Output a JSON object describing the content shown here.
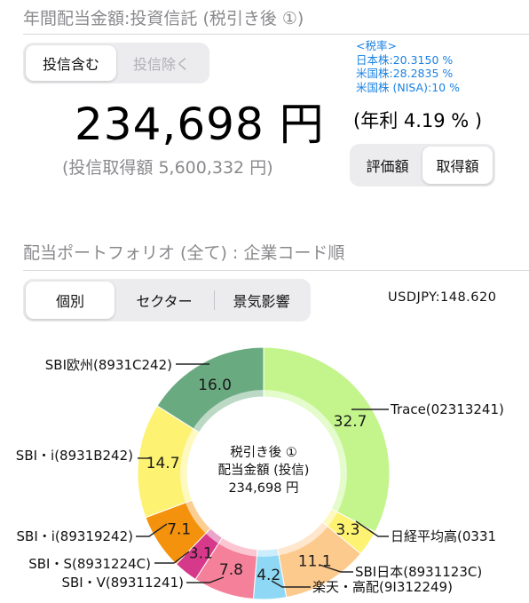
{
  "header": {
    "title": "年間配当金額:投資信託 (税引き後 ①)",
    "toggle": {
      "include_label": "投信含む",
      "exclude_label": "投信除く"
    },
    "tax_rates": {
      "heading": "<税率>",
      "jp": "日本株:20.3150 %",
      "us": "米国株:28.2835 %",
      "us_nisa": "米国株 (NISA):10 %"
    },
    "amount": "234,698 円",
    "yield": "(年利 4.19 % )",
    "acquisition": "(投信取得額 5,600,332 円)",
    "basis_toggle": {
      "market_label": "評価額",
      "cost_label": "取得額"
    }
  },
  "portfolio": {
    "title": "配当ポートフォリオ (全て) : 企業コード順",
    "tabs": [
      "個別",
      "セクター",
      "景気影響"
    ],
    "usdjpy": "USDJPY:148.620",
    "center": {
      "line1": "税引き後 ①",
      "line2": "配当金額 (投信)",
      "line3": "234,698 円"
    }
  },
  "chart_data": {
    "type": "pie",
    "unit": "%",
    "segments": [
      {
        "name": "Trace(02313241)",
        "value": 32.7,
        "color": "#c4f58c"
      },
      {
        "name": "日経平均高(0331",
        "value": 3.3,
        "color": "#fdf272"
      },
      {
        "name": "SBI日本(8931123C)",
        "value": 11.1,
        "color": "#fdca8e"
      },
      {
        "name": "楽天・高配(9I312249)",
        "value": 4.2,
        "color": "#8ed8f5"
      },
      {
        "name": "SBI・V(89311241)",
        "value": 7.8,
        "color": "#f5809a"
      },
      {
        "name": "SBI・S(8931224C)",
        "value": 3.1,
        "color": "#d6388a"
      },
      {
        "name": "SBI・i(89319242)",
        "value": 7.1,
        "color": "#f5920d"
      },
      {
        "name": "SBI・i(8931B242)",
        "value": 14.7,
        "color": "#fdf272"
      },
      {
        "name": "SBI欧州(8931C242)",
        "value": 16.0,
        "color": "#6aaa80"
      }
    ]
  }
}
